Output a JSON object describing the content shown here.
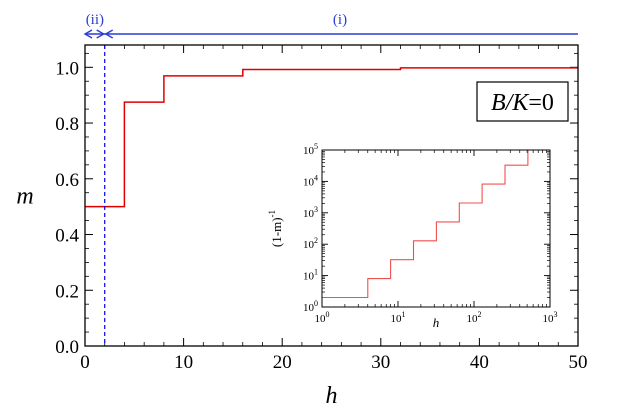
{
  "chart_data": [
    {
      "type": "line",
      "style": "step",
      "title": "",
      "xlabel": "h",
      "ylabel": "m",
      "xlim": [
        0,
        50
      ],
      "ylim": [
        0,
        1.08
      ],
      "xticks": [
        0,
        10,
        20,
        30,
        40,
        50
      ],
      "xtick_labels": [
        "0",
        "10",
        "20",
        "30",
        "40",
        "50"
      ],
      "yticks": [
        0,
        0.2,
        0.4,
        0.6,
        0.8,
        1.0
      ],
      "ytick_labels": [
        "0.0",
        "0.2",
        "0.4",
        "0.6",
        "0.8",
        "1.0"
      ],
      "series": [
        {
          "color": "#e00000",
          "x": [
            0,
            4,
            4,
            8,
            8,
            16,
            16,
            32,
            32,
            50
          ],
          "y": [
            0.5,
            0.5,
            0.875,
            0.875,
            0.969,
            0.969,
            0.992,
            0.992,
            0.998,
            0.998
          ]
        }
      ],
      "vline": {
        "x": 2,
        "color": "#0000ee",
        "style": "dashed"
      },
      "regions": [
        {
          "label": "(ii)",
          "from": 0,
          "to": 2
        },
        {
          "label": "(i)",
          "from": 2,
          "to": 50
        }
      ],
      "region_color": "#2a3fd4",
      "annotation": {
        "italic": "B/K",
        "rest": "=0"
      }
    },
    {
      "type": "line",
      "style": "step",
      "inset": true,
      "xlabel": "h",
      "ylabel": "(1-m)",
      "ylabel_sup": "-1",
      "xscale": "log",
      "yscale": "log",
      "xlim": [
        1,
        1000
      ],
      "ylim": [
        1,
        100000
      ],
      "xtick_mantissa": "10",
      "xtick_exponents": [
        "0",
        "1",
        "2",
        "3"
      ],
      "ytick_mantissa": "10",
      "ytick_exponents": [
        "0",
        "1",
        "2",
        "3",
        "4",
        "5"
      ],
      "series": [
        {
          "color": "#f05050",
          "x": [
            1,
            4,
            4,
            8,
            8,
            16,
            16,
            32,
            32,
            64,
            64,
            128,
            128,
            256,
            256,
            512,
            512
          ],
          "y": [
            2,
            2,
            8,
            8,
            32,
            32,
            128,
            128,
            512,
            512,
            2048,
            2048,
            8192,
            8192,
            32768,
            32768,
            100000
          ]
        }
      ]
    }
  ]
}
